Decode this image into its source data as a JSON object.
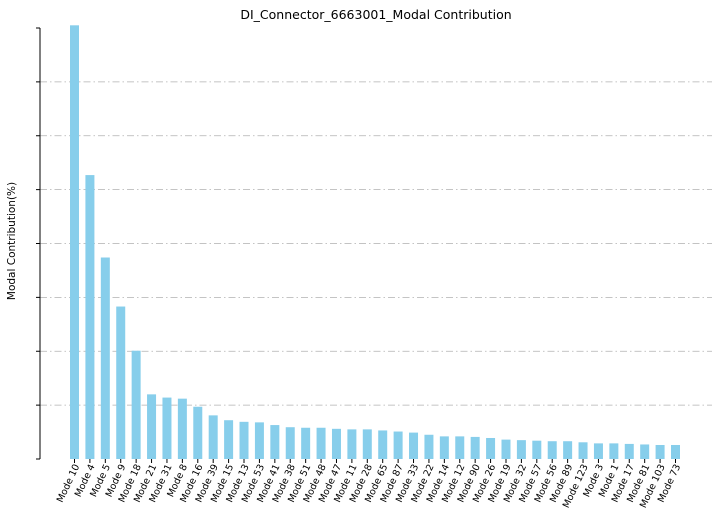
{
  "chart_data": {
    "type": "bar",
    "title": "DI_Connector_6663001_Modal Contribution",
    "xlabel": "",
    "ylabel": "Modal Contribution(%)",
    "ylim": [
      0,
      8
    ],
    "yticks": [
      0,
      1,
      2,
      3,
      4,
      5,
      6,
      7,
      8
    ],
    "ytick_labels_visible": false,
    "grid": "horizontal dash-dot",
    "bar_color": "#87ceeb",
    "categories": [
      "Mode 10",
      "Mode 4",
      "Mode 5",
      "Mode 9",
      "Mode 18",
      "Mode 21",
      "Mode 31",
      "Mode 8",
      "Mode 16",
      "Mode 39",
      "Mode 15",
      "Mode 13",
      "Mode 53",
      "Mode 41",
      "Mode 38",
      "Mode 51",
      "Mode 48",
      "Mode 47",
      "Mode 11",
      "Mode 28",
      "Mode 65",
      "Mode 87",
      "Mode 33",
      "Mode 22",
      "Mode 14",
      "Mode 12",
      "Mode 90",
      "Mode 26",
      "Mode 19",
      "Mode 32",
      "Mode 57",
      "Mode 56",
      "Mode 89",
      "Mode 123",
      "Mode 3",
      "Mode 1",
      "Mode 17",
      "Mode 81",
      "Mode 103",
      "Mode 73"
    ],
    "values": [
      8.05,
      5.27,
      3.74,
      2.83,
      2.01,
      1.2,
      1.14,
      1.12,
      0.97,
      0.81,
      0.72,
      0.69,
      0.68,
      0.63,
      0.59,
      0.58,
      0.58,
      0.56,
      0.55,
      0.55,
      0.53,
      0.51,
      0.49,
      0.45,
      0.42,
      0.42,
      0.41,
      0.39,
      0.36,
      0.35,
      0.34,
      0.33,
      0.33,
      0.31,
      0.29,
      0.29,
      0.28,
      0.27,
      0.26,
      0.26
    ]
  }
}
